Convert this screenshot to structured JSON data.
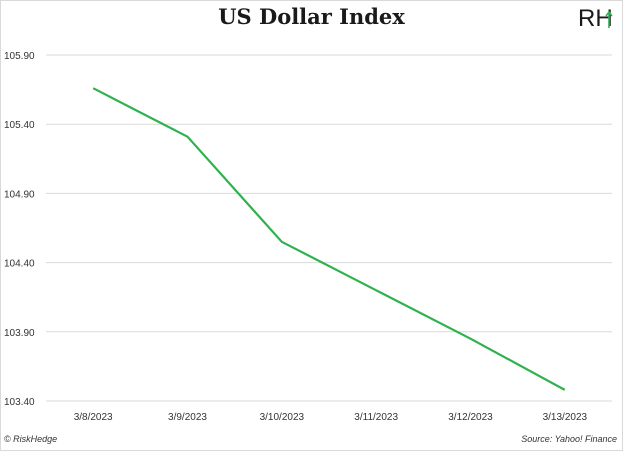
{
  "title": "US Dollar Index",
  "logo_text": "RH",
  "copyright": "© RiskHedge",
  "source": "Source: Yahoo! Finance",
  "colors": {
    "line": "#2eb24e",
    "grid": "#d9d9d9",
    "axis_text": "#333333"
  },
  "chart_data": {
    "type": "line",
    "title": "US Dollar Index",
    "categories": [
      "3/8/2023",
      "3/9/2023",
      "3/10/2023",
      "3/11/2023",
      "3/12/2023",
      "3/13/2023"
    ],
    "series": [
      {
        "values": [
          105.66,
          105.31,
          104.55,
          104.2,
          103.85,
          103.48
        ]
      }
    ],
    "y_ticks": [
      "105.90",
      "105.40",
      "104.90",
      "104.40",
      "103.90",
      "103.40"
    ],
    "ylim": [
      103.4,
      105.9
    ],
    "grid": true,
    "xlabel": "",
    "ylabel": ""
  }
}
